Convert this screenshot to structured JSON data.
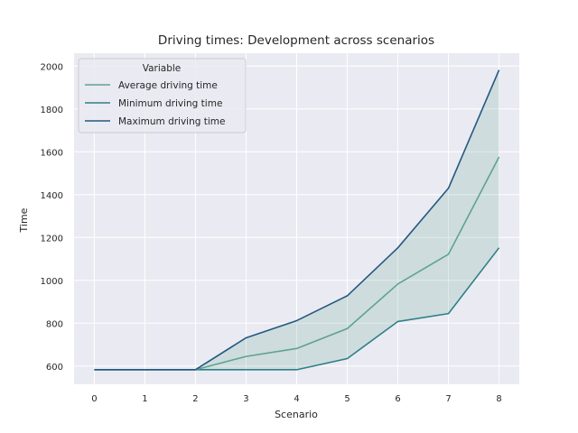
{
  "chart_data": {
    "type": "line",
    "title": "Driving times: Development across scenarios",
    "xlabel": "Scenario",
    "ylabel": "Time",
    "x": [
      0,
      1,
      2,
      3,
      4,
      5,
      6,
      7,
      8
    ],
    "xlim": [
      -0.4,
      8.4
    ],
    "ylim": [
      515,
      2060
    ],
    "xticks": [
      0,
      1,
      2,
      3,
      4,
      5,
      6,
      7,
      8
    ],
    "yticks": [
      600,
      800,
      1000,
      1200,
      1400,
      1600,
      1800,
      2000
    ],
    "grid": true,
    "style": "seaborn-darkgrid",
    "background_color": "#eaeaf2",
    "legend": {
      "title": "Variable",
      "placement": "top-left"
    },
    "shaded_band": {
      "between": [
        "Minimum driving time",
        "Maximum driving time"
      ],
      "color": "#5fa593",
      "opacity": 0.2
    },
    "series": [
      {
        "name": "Average driving time",
        "color": "#5ea38e",
        "values": [
          583,
          583,
          583,
          645,
          682,
          775,
          983,
          1122,
          1576
        ]
      },
      {
        "name": "Minimum driving time",
        "color": "#2f7f88",
        "values": [
          583,
          583,
          583,
          583,
          583,
          635,
          808,
          845,
          1152
        ]
      },
      {
        "name": "Maximum driving time",
        "color": "#24587f",
        "values": [
          583,
          583,
          583,
          732,
          812,
          928,
          1152,
          1430,
          1982
        ]
      }
    ]
  }
}
